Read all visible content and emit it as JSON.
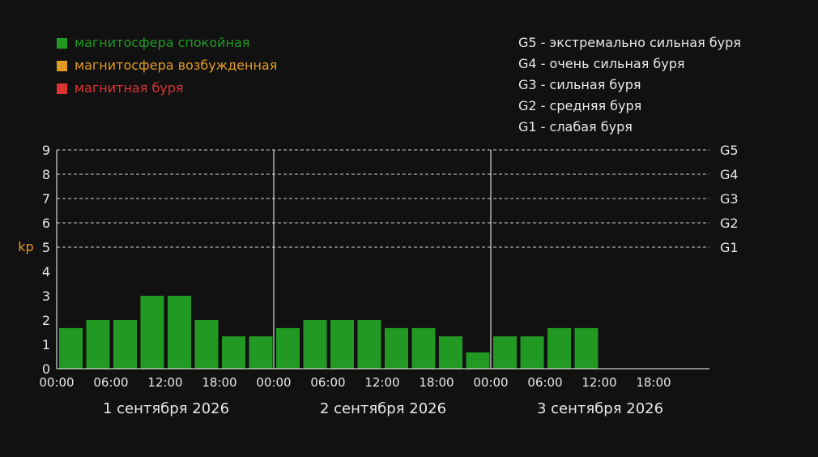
{
  "colors": {
    "background": "#111111",
    "quiet": "#229922",
    "active": "#e29b22",
    "storm": "#dd3333",
    "text": "#e8e8e8",
    "ylabel": "#e29b22",
    "grid": "#cfcfcf",
    "axis": "#ffffff"
  },
  "legend_status": [
    {
      "label": "магнитосфера спокойная",
      "color": "#229922"
    },
    {
      "label": "магнитосфера возбужденная",
      "color": "#e29b22"
    },
    {
      "label": "магнитная буря",
      "color": "#dd3333"
    }
  ],
  "legend_scale": [
    "G5 - экстремально сильная буря",
    "G4 - очень сильная буря",
    "G3 - сильная буря",
    "G2 - средняя буря",
    "G1 - слабая буря"
  ],
  "chart_data": {
    "type": "bar",
    "ylabel": "kp",
    "ylim": [
      0,
      9
    ],
    "yticks": [
      0,
      1,
      2,
      3,
      4,
      5,
      6,
      7,
      8,
      9
    ],
    "grid_lines": [
      {
        "value": 5,
        "label": "G1"
      },
      {
        "value": 6,
        "label": "G2"
      },
      {
        "value": 7,
        "label": "G3"
      },
      {
        "value": 8,
        "label": "G4"
      },
      {
        "value": 9,
        "label": "G5"
      }
    ],
    "xtick_labels": [
      "00:00",
      "06:00",
      "12:00",
      "18:00",
      "00:00",
      "06:00",
      "12:00",
      "18:00",
      "00:00",
      "06:00",
      "12:00",
      "18:00"
    ],
    "days": [
      "1 сентября 2026",
      "2 сентября 2026",
      "3 сентября 2026"
    ],
    "values": [
      1.67,
      2,
      2,
      3,
      3,
      2,
      1.33,
      1.33,
      1.67,
      2,
      2,
      2,
      1.67,
      1.67,
      1.33,
      0.67,
      1.33,
      1.33,
      1.67,
      1.67
    ]
  }
}
